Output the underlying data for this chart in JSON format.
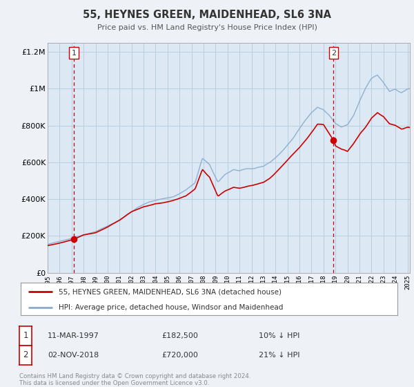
{
  "title": "55, HEYNES GREEN, MAIDENHEAD, SL6 3NA",
  "subtitle": "Price paid vs. HM Land Registry's House Price Index (HPI)",
  "legend_line1": "55, HEYNES GREEN, MAIDENHEAD, SL6 3NA (detached house)",
  "legend_line2": "HPI: Average price, detached house, Windsor and Maidenhead",
  "footnote1": "Contains HM Land Registry data © Crown copyright and database right 2024.",
  "footnote2": "This data is licensed under the Open Government Licence v3.0.",
  "annotation1": {
    "label": "1",
    "date": "11-MAR-1997",
    "price": "£182,500",
    "info": "10% ↓ HPI"
  },
  "annotation2": {
    "label": "2",
    "date": "02-NOV-2018",
    "price": "£720,000",
    "info": "21% ↓ HPI"
  },
  "vline1_x": 1997.19,
  "vline2_x": 2018.84,
  "marker1_x": 1997.19,
  "marker1_y": 182500,
  "marker2_x": 2018.84,
  "marker2_y": 720000,
  "ylim": [
    0,
    1250000
  ],
  "xlim": [
    1995.0,
    2025.2
  ],
  "yticks": [
    0,
    200000,
    400000,
    600000,
    800000,
    1000000,
    1200000
  ],
  "ytick_labels": [
    "£0",
    "£200K",
    "£400K",
    "£600K",
    "£800K",
    "£1M",
    "£1.2M"
  ],
  "xticks": [
    1995,
    1996,
    1997,
    1998,
    1999,
    2000,
    2001,
    2002,
    2003,
    2004,
    2005,
    2006,
    2007,
    2008,
    2009,
    2010,
    2011,
    2012,
    2013,
    2014,
    2015,
    2016,
    2017,
    2018,
    2019,
    2020,
    2021,
    2022,
    2023,
    2024,
    2025
  ],
  "red_color": "#cc0000",
  "blue_color": "#88aacc",
  "background_color": "#eef2f7",
  "plot_bg_color": "#dce8f3",
  "grid_color": "#b8cfe0",
  "vline_color": "#cc0000",
  "spine_color": "#aaaaaa",
  "title_color": "#333333",
  "subtitle_color": "#555555",
  "text_color": "#333333",
  "footnote_color": "#888888"
}
